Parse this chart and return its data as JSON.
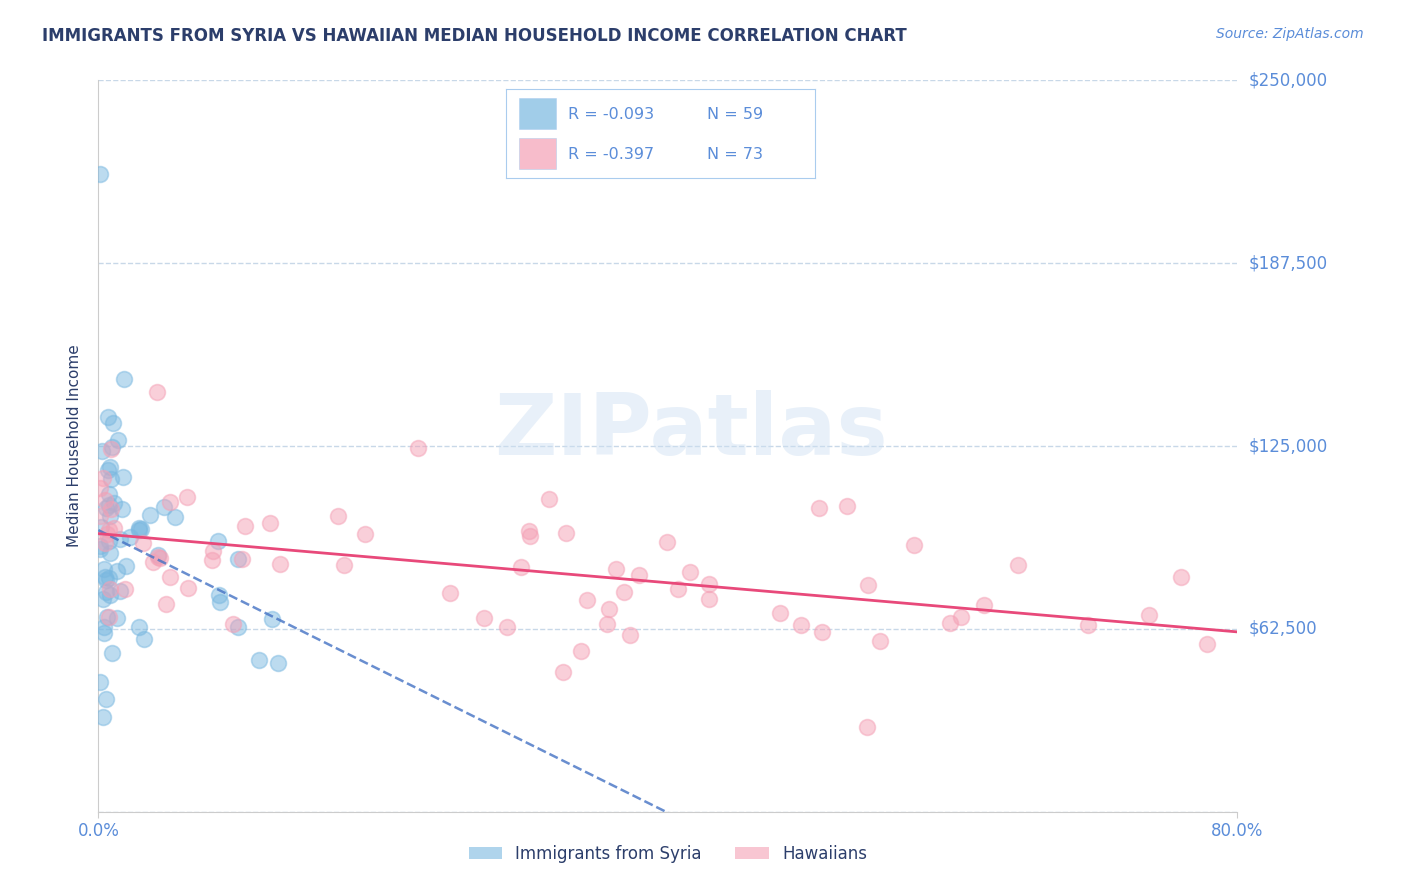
{
  "title": "IMMIGRANTS FROM SYRIA VS HAWAIIAN MEDIAN HOUSEHOLD INCOME CORRELATION CHART",
  "source": "Source: ZipAtlas.com",
  "ylabel": "Median Household Income",
  "y_tick_values": [
    0,
    62500,
    125000,
    187500,
    250000
  ],
  "y_tick_labels": [
    "",
    "$62,500",
    "$125,000",
    "$187,500",
    "$250,000"
  ],
  "x_min": 0.0,
  "x_max": 0.8,
  "y_min": 0,
  "y_max": 250000,
  "series1_label": "Immigrants from Syria",
  "series1_color": "#7ab8e0",
  "series2_label": "Hawaiians",
  "series2_color": "#f4a0b5",
  "trend1_color": "#4472c4",
  "trend2_color": "#e8497a",
  "background_color": "#ffffff",
  "title_color": "#2c3e6b",
  "axis_label_color": "#2c3e6b",
  "tick_color": "#5b8dd9",
  "grid_color": "#c8d8e8",
  "legend_R1": "-0.093",
  "legend_N1": "59",
  "legend_R2": "-0.397",
  "legend_N2": "73",
  "watermark_text": "ZIPatlas"
}
